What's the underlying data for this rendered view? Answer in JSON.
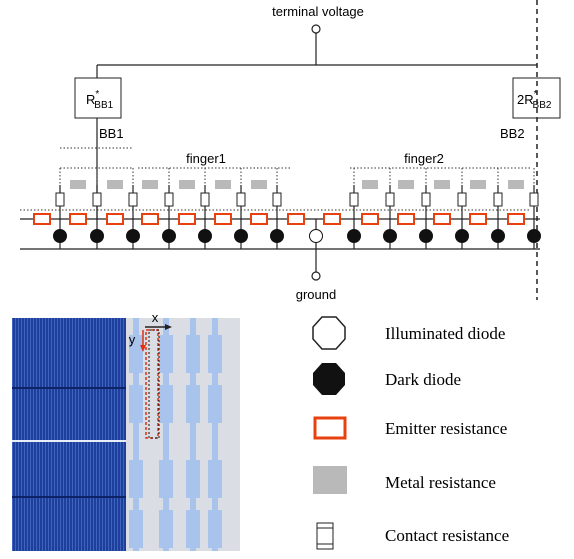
{
  "circuit": {
    "terminal_voltage": "terminal voltage",
    "ground": "ground",
    "bb1": "BB1",
    "bb2": "BB2",
    "finger1": "finger1",
    "finger2": "finger2",
    "bb1_resistor": {
      "main": "R",
      "sup": "*",
      "sub": "BB1"
    },
    "bb2_resistor": {
      "main": "2R",
      "sup": "*",
      "sub": "BB2"
    }
  },
  "photo": {
    "x_axis": "x",
    "y_axis": "y"
  },
  "legend": [
    {
      "label": "Illuminated diode"
    },
    {
      "label": "Dark diode"
    },
    {
      "label": "Emitter resistance"
    },
    {
      "label": "Metal resistance"
    },
    {
      "label": "Contact resistance"
    }
  ]
}
